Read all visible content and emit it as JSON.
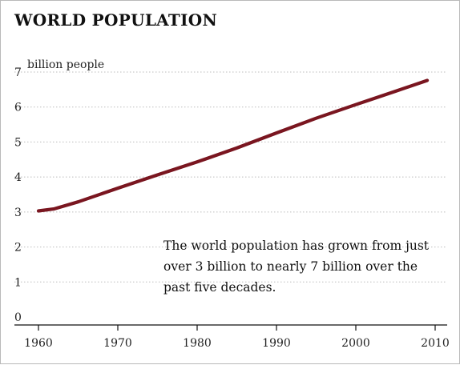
{
  "chart_data": {
    "type": "line",
    "title": "WORLD POPULATION",
    "ylabel": "billion people",
    "xlim": [
      1960,
      2010
    ],
    "ylim": [
      0,
      7
    ],
    "yticks": [
      0,
      1,
      2,
      3,
      4,
      5,
      6,
      7
    ],
    "xticks": [
      1960,
      1970,
      1980,
      1990,
      2000,
      2010
    ],
    "grid": "horizontal-dotted",
    "series": [
      {
        "color": "#7a1620",
        "x": [
          1960,
          1962,
          1965,
          1970,
          1975,
          1980,
          1985,
          1990,
          1995,
          2000,
          2005,
          2009
        ],
        "y": [
          3.03,
          3.09,
          3.29,
          3.68,
          4.06,
          4.43,
          4.83,
          5.26,
          5.68,
          6.07,
          6.45,
          6.76
        ]
      }
    ],
    "annotation": "The world population has grown from just over 3 billion to nearly 7 billion over the past five decades.",
    "annotation_lines": [
      "The world population has grown from just",
      "over 3 billion to nearly 7 billion over the",
      "past five decades."
    ]
  }
}
